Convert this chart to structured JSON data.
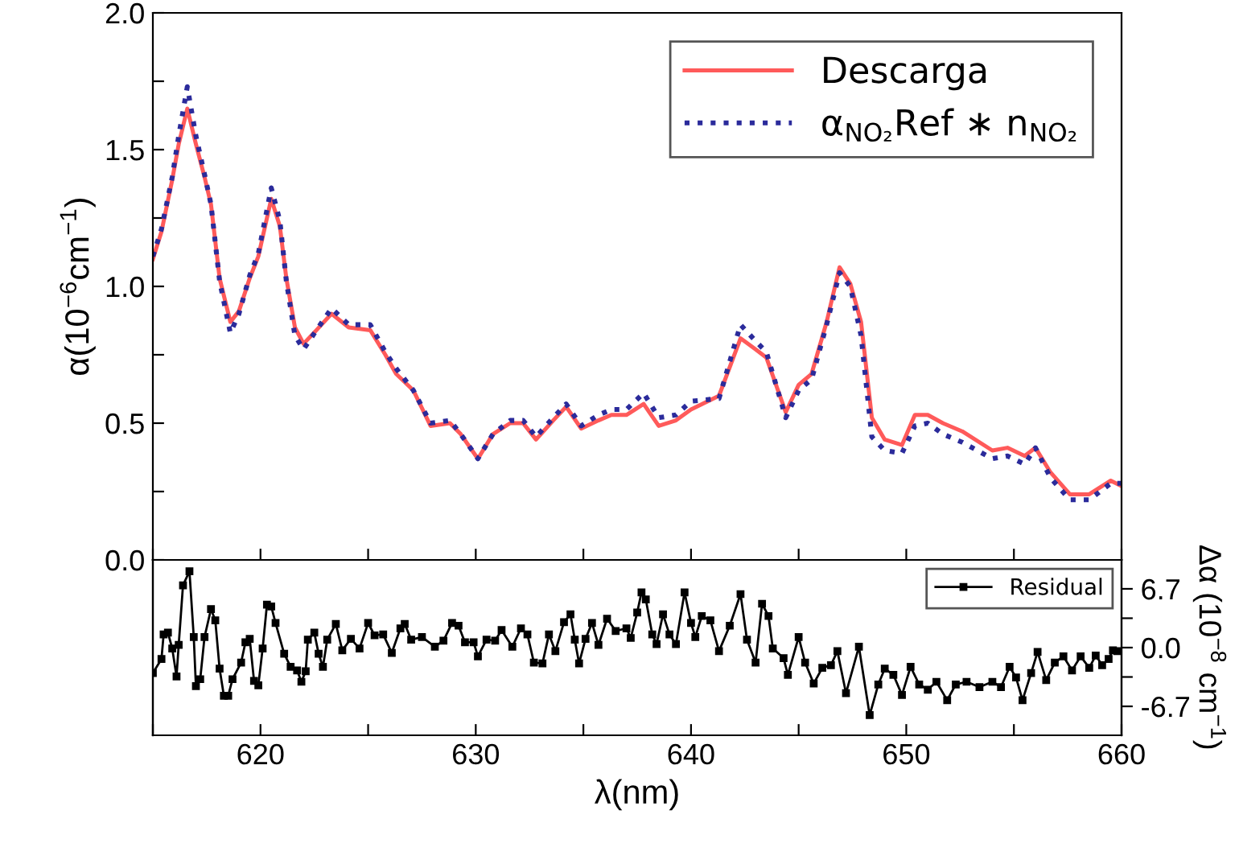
{
  "chart_data": [
    {
      "type": "line",
      "ylabel": "α(10$^{−6}$cm$^{−1}$)",
      "xlim": [
        615,
        660
      ],
      "ylim": [
        0,
        2.0
      ],
      "xticks": [
        {
          "value": 615,
          "label": null
        },
        {
          "value": 620,
          "label": null
        },
        {
          "value": 625,
          "label": null
        },
        {
          "value": 630,
          "label": null
        },
        {
          "value": 635,
          "label": null
        },
        {
          "value": 640,
          "label": null
        },
        {
          "value": 645,
          "label": null
        },
        {
          "value": 650,
          "label": null
        },
        {
          "value": 655,
          "label": null
        },
        {
          "value": 660,
          "label": null
        }
      ],
      "yticks": [
        {
          "value": 0,
          "label": "0.0"
        },
        {
          "value": 0.25,
          "label": null
        },
        0.5,
        {
          "value": 0.75,
          "label": null
        },
        {
          "value": 1.0,
          "label": "1.0"
        },
        {
          "value": 1.25,
          "label": null
        },
        1.5,
        {
          "value": 1.75,
          "label": null
        },
        {
          "value": 2.0,
          "label": "2.0"
        }
      ],
      "tick_labels": "y",
      "grid": false,
      "legend": "top right",
      "x": [
        615.0,
        615.4,
        615.9,
        616.2,
        616.6,
        617.0,
        617.4,
        617.7,
        618.1,
        618.6,
        619.0,
        619.5,
        619.9,
        620.5,
        620.9,
        621.2,
        621.6,
        622.0,
        622.6,
        623.3,
        624.1,
        625.1,
        625.8,
        626.3,
        627.1,
        627.9,
        628.8,
        629.3,
        630.1,
        630.8,
        631.6,
        632.2,
        632.8,
        633.6,
        634.2,
        634.9,
        635.7,
        636.3,
        637.0,
        637.8,
        638.5,
        639.3,
        640.0,
        641.3,
        642.3,
        643.0,
        643.5,
        644.4,
        645.0,
        645.6,
        646.3,
        646.9,
        647.4,
        647.9,
        648.4,
        649.0,
        649.8,
        650.4,
        651.0,
        651.7,
        652.6,
        654.0,
        654.7,
        655.5,
        656.0,
        656.7,
        657.6,
        658.5,
        659.5,
        660.0
      ],
      "series": [
        {
          "name": "Descarga",
          "color": "#ff5a5a",
          "line_style": "solid",
          "marker": "none",
          "values": [
            1.1,
            1.2,
            1.39,
            1.52,
            1.65,
            1.52,
            1.4,
            1.3,
            1.03,
            0.87,
            0.91,
            1.03,
            1.11,
            1.32,
            1.22,
            1.03,
            0.85,
            0.79,
            0.84,
            0.9,
            0.85,
            0.84,
            0.75,
            0.68,
            0.62,
            0.49,
            0.5,
            0.46,
            0.37,
            0.46,
            0.5,
            0.5,
            0.44,
            0.51,
            0.56,
            0.48,
            0.51,
            0.53,
            0.53,
            0.57,
            0.49,
            0.51,
            0.55,
            0.6,
            0.81,
            0.77,
            0.74,
            0.54,
            0.64,
            0.68,
            0.87,
            1.07,
            1.01,
            0.87,
            0.52,
            0.44,
            0.42,
            0.53,
            0.53,
            0.5,
            0.47,
            0.4,
            0.41,
            0.38,
            0.41,
            0.32,
            0.24,
            0.24,
            0.29,
            0.27
          ]
        },
        {
          "name": "α$_{NO₂}$Ref ∗ n$_{NO₂}$",
          "color": "#2b2b9b",
          "line_style": "dotted",
          "marker": "none",
          "values": [
            1.11,
            1.21,
            1.4,
            1.55,
            1.73,
            1.55,
            1.41,
            1.3,
            1.02,
            0.83,
            0.9,
            1.04,
            1.12,
            1.36,
            1.24,
            1.02,
            0.82,
            0.77,
            0.84,
            0.92,
            0.86,
            0.86,
            0.76,
            0.7,
            0.62,
            0.5,
            0.51,
            0.46,
            0.37,
            0.46,
            0.51,
            0.51,
            0.45,
            0.52,
            0.57,
            0.49,
            0.53,
            0.55,
            0.55,
            0.61,
            0.52,
            0.53,
            0.58,
            0.59,
            0.86,
            0.8,
            0.76,
            0.52,
            0.62,
            0.66,
            0.86,
            1.05,
            1.0,
            0.82,
            0.45,
            0.4,
            0.39,
            0.49,
            0.5,
            0.46,
            0.43,
            0.37,
            0.38,
            0.35,
            0.41,
            0.3,
            0.22,
            0.22,
            0.28,
            0.28
          ]
        }
      ]
    },
    {
      "type": "line",
      "xlabel": "λ(nm)",
      "y2label": "Δα (10$^{−8}$ cm$^{−1}$)",
      "xlim": [
        615,
        660
      ],
      "xticks": [
        {
          "value": 615,
          "label": null
        },
        620,
        {
          "value": 625,
          "label": null
        },
        630,
        {
          "value": 635,
          "label": null
        },
        640,
        {
          "value": 645,
          "label": null
        },
        650,
        {
          "value": 655,
          "label": null
        },
        660
      ],
      "y2lim": [
        -10,
        10
      ],
      "y2ticks": [
        {
          "value": -6.7,
          "label": "-6.7"
        },
        {
          "value": -3.35,
          "label": null
        },
        {
          "value": 0,
          "label": "0.0"
        },
        {
          "value": 3.35,
          "label": null
        },
        6.7
      ],
      "grid": false,
      "legend": "top right",
      "x": [
        615.0,
        615.4,
        615.5,
        615.7,
        615.9,
        616.1,
        616.2,
        616.4,
        616.7,
        616.9,
        617.0,
        617.2,
        617.4,
        617.7,
        617.9,
        618.1,
        618.3,
        618.5,
        618.7,
        619.1,
        619.3,
        619.5,
        619.7,
        619.9,
        620.1,
        620.3,
        620.5,
        620.7,
        621.1,
        621.4,
        621.7,
        621.9,
        622.1,
        622.2,
        622.5,
        622.7,
        622.9,
        623.1,
        623.5,
        623.8,
        624.2,
        624.6,
        625.0,
        625.3,
        625.7,
        626.1,
        626.5,
        626.7,
        627.0,
        627.5,
        628.1,
        628.5,
        628.9,
        629.2,
        629.5,
        629.9,
        630.1,
        630.5,
        630.9,
        631.2,
        631.7,
        632.1,
        632.4,
        632.7,
        633.1,
        633.4,
        633.7,
        634.1,
        634.4,
        634.6,
        634.8,
        635.1,
        635.4,
        635.7,
        636.1,
        636.5,
        637.0,
        637.2,
        637.5,
        637.7,
        637.9,
        638.2,
        638.4,
        638.7,
        639.0,
        639.3,
        639.7,
        640.0,
        640.2,
        640.5,
        640.9,
        641.3,
        641.8,
        642.3,
        642.6,
        643.0,
        643.3,
        643.6,
        643.8,
        644.3,
        644.5,
        645.0,
        645.3,
        645.7,
        646.1,
        646.5,
        646.8,
        647.2,
        647.8,
        648.3,
        648.7,
        649.0,
        649.4,
        649.8,
        650.2,
        650.6,
        651.0,
        651.4,
        651.9,
        652.3,
        652.8,
        653.4,
        654.0,
        654.4,
        654.8,
        655.1,
        655.4,
        655.8,
        656.1,
        656.5,
        656.9,
        657.3,
        657.7,
        658.1,
        658.5,
        658.8,
        659.1,
        659.4,
        659.6,
        659.8
      ],
      "series": [
        {
          "name": "Residual",
          "color": "#000000",
          "axis": "y2",
          "line_style": "solid",
          "marker": "square",
          "values": [
            -2.9,
            -1.3,
            1.5,
            1.7,
            -0.1,
            -3.3,
            0.3,
            7.1,
            8.7,
            1.2,
            -4.4,
            -3.6,
            1.2,
            4.4,
            3.1,
            -2.4,
            -5.5,
            -5.5,
            -3.6,
            -1.7,
            0.6,
            1.0,
            -3.8,
            -4.3,
            -0.1,
            4.9,
            4.7,
            2.8,
            -0.7,
            -2.2,
            -2.6,
            -3.9,
            -2.7,
            0.9,
            1.7,
            -0.7,
            -2.2,
            0.9,
            2.7,
            -0.3,
            1.0,
            -0.1,
            2.8,
            1.4,
            1.5,
            -0.6,
            2.2,
            2.7,
            0.9,
            1.2,
            0.1,
            0.8,
            2.8,
            2.5,
            0.6,
            0.6,
            -1.0,
            0.9,
            0.8,
            2.0,
            0.1,
            2.2,
            1.5,
            -1.7,
            -1.8,
            1.5,
            -0.4,
            2.9,
            3.8,
            0.9,
            -1.8,
            1.0,
            2.8,
            0.3,
            3.3,
            1.9,
            2.2,
            1.1,
            4.0,
            6.3,
            5.5,
            1.5,
            0.4,
            3.8,
            1.5,
            0.4,
            6.3,
            2.8,
            1.2,
            3.6,
            3.1,
            -0.4,
            2.5,
            6.1,
            0.9,
            -1.7,
            5.0,
            3.6,
            -0.1,
            -1.2,
            -3.1,
            1.2,
            -1.7,
            -4.1,
            -2.3,
            -2.0,
            -0.4,
            -5.2,
            0.1,
            -7.7,
            -4.2,
            -2.4,
            -3.1,
            -5.4,
            -2.2,
            -4.2,
            -4.8,
            -3.9,
            -6.0,
            -4.2,
            -3.9,
            -4.5,
            -3.9,
            -4.5,
            -2.2,
            -3.4,
            -6.0,
            -2.9,
            -0.5,
            -3.7,
            -1.7,
            -1.0,
            -2.6,
            -1.0,
            -2.3,
            -0.9,
            -2.0,
            -1.3,
            -0.3,
            -0.4
          ]
        }
      ]
    }
  ]
}
